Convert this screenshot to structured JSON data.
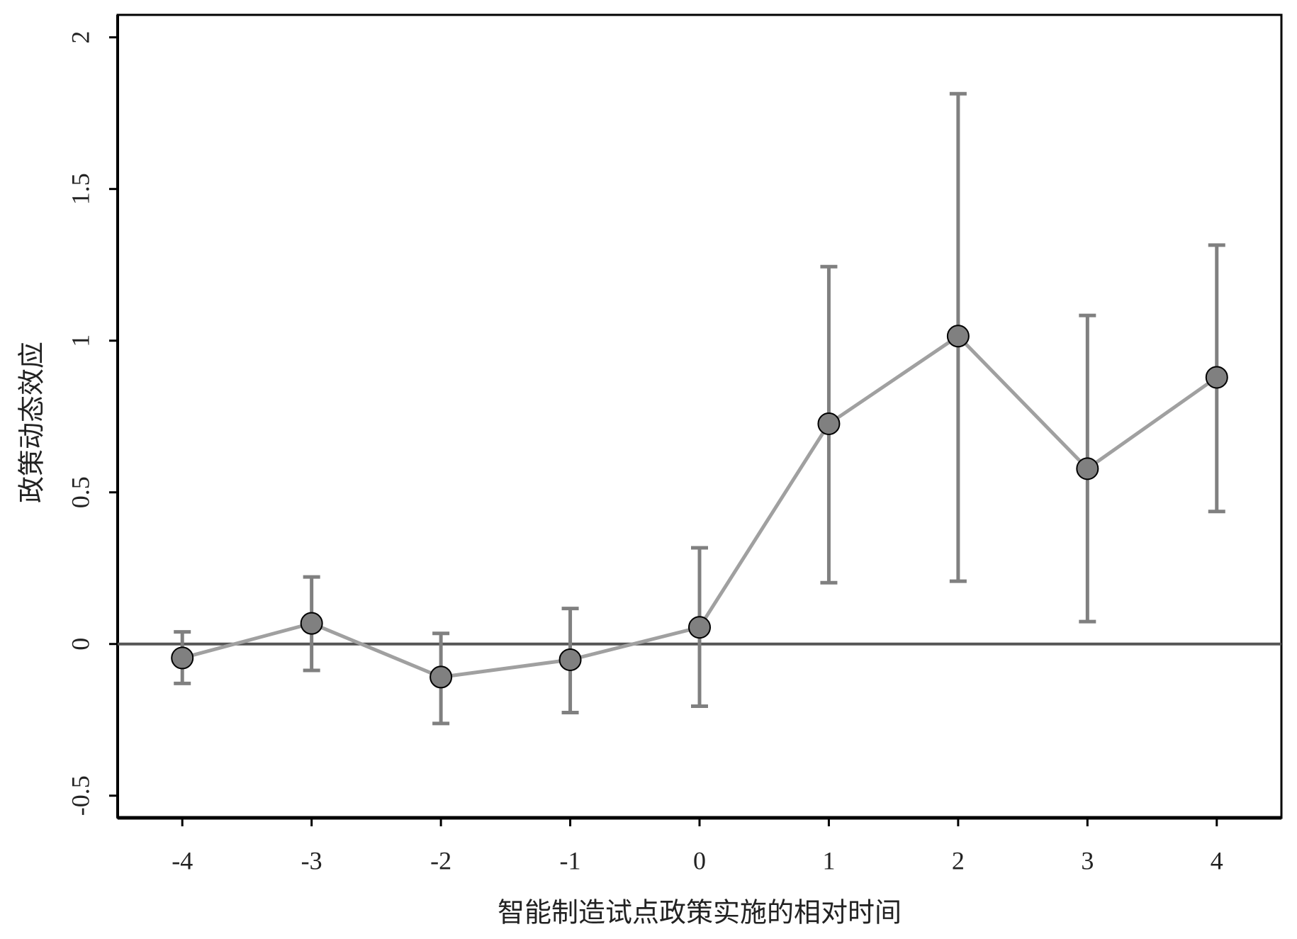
{
  "chart_data": {
    "type": "line",
    "xlabel": "智能制造试点政策实施的相对时间",
    "ylabel": "政策动态效应",
    "x": [
      -4,
      -3,
      -2,
      -1,
      0,
      1,
      2,
      3,
      4
    ],
    "series": [
      {
        "color": "#a0a0a0",
        "marker_color": "#808080",
        "error_color": "#808080",
        "values": [
          -0.046,
          0.068,
          -0.109,
          -0.052,
          0.055,
          0.726,
          1.015,
          0.578,
          0.879
        ],
        "lower": [
          -0.13,
          -0.087,
          -0.262,
          -0.226,
          -0.205,
          0.202,
          0.207,
          0.074,
          0.437
        ],
        "upper": [
          0.04,
          0.221,
          0.035,
          0.117,
          0.317,
          1.244,
          1.814,
          1.083,
          1.315
        ]
      }
    ],
    "reference_line": 0,
    "reference_color": "#555555",
    "xlim": [
      -4.5,
      4.5
    ],
    "xticks": [
      -4,
      -3,
      -2,
      -1,
      0,
      1,
      2,
      3,
      4
    ],
    "ylim": [
      -0.573,
      2.074
    ],
    "yticks": [
      -0.5,
      0,
      0.5,
      1,
      1.5,
      2
    ]
  }
}
